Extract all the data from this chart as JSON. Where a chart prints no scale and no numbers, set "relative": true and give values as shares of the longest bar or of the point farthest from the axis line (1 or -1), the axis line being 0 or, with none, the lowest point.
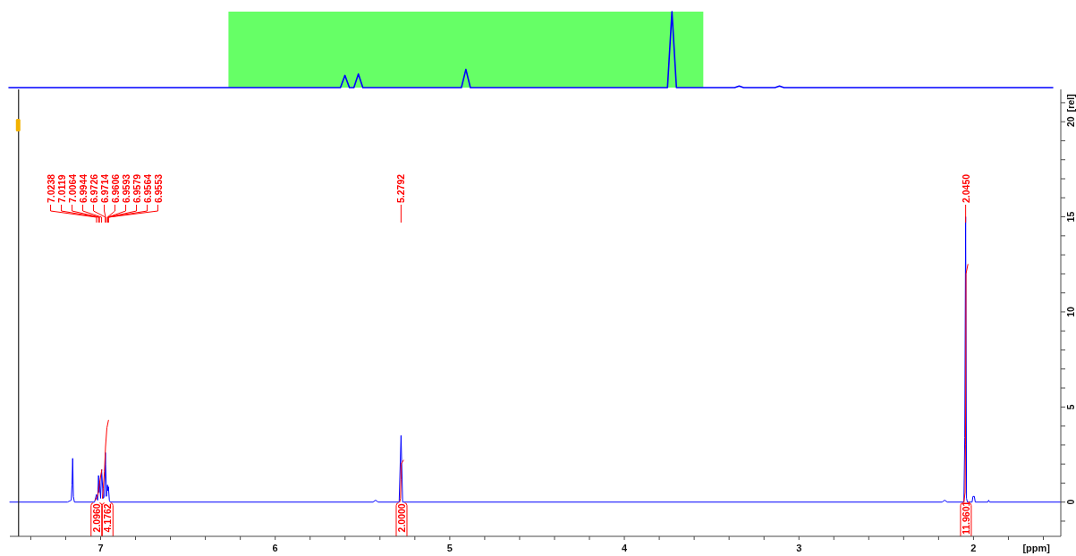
{
  "chart_data": [
    {
      "type": "line",
      "relative": true,
      "categories": [
        null,
        null,
        null,
        null,
        null,
        null,
        null,
        null,
        null,
        null,
        null,
        null,
        null,
        null,
        null,
        null,
        null,
        null,
        null,
        null,
        null,
        null,
        null,
        null,
        null,
        null,
        null,
        null,
        null,
        null,
        null,
        null,
        null,
        null,
        null,
        null,
        null,
        null,
        null,
        null,
        null,
        null,
        null,
        null,
        null,
        null,
        null,
        null,
        null,
        null,
        null,
        null,
        null,
        null,
        null,
        null,
        null,
        null,
        null,
        null,
        null,
        null,
        null,
        null,
        null,
        null,
        null,
        null,
        null,
        null,
        null,
        null,
        null,
        null,
        null,
        null,
        null,
        null,
        null,
        null,
        null,
        null,
        null,
        null,
        null,
        null,
        null,
        null,
        null,
        null,
        null,
        null,
        null,
        null,
        null,
        null,
        null,
        null,
        null,
        null,
        null,
        null,
        null,
        null,
        null,
        null,
        null,
        null,
        null,
        null,
        null,
        null,
        null,
        null,
        null,
        null,
        null,
        null,
        null,
        null,
        null,
        null,
        null,
        null,
        null,
        null,
        null,
        null,
        null,
        null,
        null,
        null,
        null,
        null,
        null,
        null,
        null,
        null,
        null,
        null,
        null,
        null,
        null,
        null,
        null,
        null,
        null,
        null,
        null,
        null,
        null,
        null,
        null,
        null,
        null,
        null,
        null,
        null,
        null,
        null,
        null,
        null,
        null,
        null,
        null,
        null,
        null,
        null,
        null,
        null,
        null,
        null,
        null,
        null,
        null,
        null,
        null,
        null,
        null,
        null,
        null,
        null,
        null,
        null,
        null,
        null,
        null,
        null,
        null,
        null,
        null,
        null,
        null,
        null,
        null,
        null,
        null,
        null,
        null,
        null,
        null,
        null,
        null,
        null,
        null,
        null,
        null,
        null,
        null,
        null,
        null,
        null,
        null,
        null,
        null,
        null,
        null,
        null,
        null,
        null,
        null,
        null,
        null,
        null,
        null,
        null,
        null,
        null,
        null,
        null,
        null,
        null,
        null,
        null
      ],
      "series": [
        {
          "type": "area",
          "color": "#66ff66",
          "values": [
            null,
            null,
            null,
            null,
            null,
            null,
            null,
            null,
            null,
            null,
            null,
            null,
            null,
            null,
            null,
            null,
            null,
            null,
            null,
            null,
            null,
            null,
            null,
            null,
            null,
            null,
            null,
            null,
            null,
            null,
            null,
            null,
            null,
            null,
            null,
            null,
            null,
            null,
            null,
            null,
            null,
            null,
            null,
            null,
            null,
            null,
            null,
            null,
            null,
            1,
            1,
            1,
            1,
            1,
            1,
            1,
            1,
            1,
            1,
            1,
            1,
            1,
            1,
            1,
            1,
            1,
            1,
            1,
            1,
            1,
            1,
            1,
            1,
            1,
            1,
            1,
            1,
            1,
            1,
            1,
            1,
            1,
            1,
            1,
            1,
            1,
            1,
            1,
            1,
            1,
            1,
            1,
            1,
            1,
            1,
            1,
            1,
            1,
            1,
            1,
            1,
            1,
            1,
            1,
            1,
            1,
            1,
            1,
            1,
            1,
            1,
            1,
            1,
            1,
            1,
            1,
            1,
            1,
            1,
            1,
            1,
            1,
            1,
            1,
            1,
            1,
            1,
            1,
            1,
            1,
            1,
            1,
            1,
            1,
            1,
            1,
            1,
            1,
            1,
            1,
            1,
            1,
            1,
            1,
            1,
            1,
            1,
            1,
            1,
            1,
            1,
            1,
            1,
            1,
            1,
            1,
            null,
            null,
            null,
            null,
            null,
            null,
            null,
            null,
            null,
            null,
            null,
            null,
            null,
            null,
            null,
            null,
            null,
            null,
            null,
            null,
            null,
            null,
            null,
            null,
            null,
            null,
            null,
            null,
            null,
            null,
            null,
            null,
            null,
            null,
            null,
            null,
            null,
            null,
            null,
            null,
            null,
            null,
            null,
            null,
            null,
            null,
            null,
            null,
            null,
            null,
            null,
            null,
            null,
            null,
            null,
            null,
            null,
            null,
            null,
            null,
            null,
            null,
            null,
            null,
            null,
            null,
            null,
            null,
            null,
            null,
            null,
            null,
            null,
            null,
            null,
            null,
            null,
            null
          ]
        },
        {
          "color": "#0000ff",
          "values": [
            0,
            0,
            0,
            0,
            0,
            0,
            0,
            0,
            0,
            0,
            0,
            0,
            0,
            0,
            0,
            0,
            0,
            0,
            0,
            0,
            0,
            0,
            0,
            0,
            0,
            0,
            0,
            0,
            0,
            0,
            0,
            0,
            0,
            0,
            0,
            0,
            0,
            0,
            0,
            0,
            0,
            0,
            0,
            0,
            0,
            0,
            0,
            0,
            0,
            0,
            0,
            0,
            0,
            0,
            0,
            0,
            0,
            0,
            0,
            0,
            0,
            0,
            0,
            0,
            0,
            0,
            0,
            0,
            0,
            0,
            0,
            0,
            0,
            0,
            0,
            0.16,
            0,
            0,
            0.18,
            0,
            0,
            0,
            0,
            0,
            0,
            0,
            0,
            0,
            0,
            0,
            0,
            0,
            0,
            0,
            0,
            0,
            0,
            0,
            0,
            0,
            0,
            0,
            0.24,
            0,
            0,
            0,
            0,
            0,
            0,
            0,
            0,
            0,
            0,
            0,
            0,
            0,
            0,
            0,
            0,
            0,
            0,
            0,
            0,
            0,
            0,
            0,
            0,
            0,
            0,
            0,
            0,
            0,
            0,
            0,
            0,
            0,
            0,
            0,
            0,
            0,
            0,
            0,
            0,
            0,
            0,
            0,
            0,
            0,
            1,
            0,
            0,
            0,
            0,
            0,
            0,
            0,
            0,
            0,
            0,
            0,
            0,
            0,
            0,
            0.02,
            0,
            0,
            0,
            0,
            0,
            0,
            0,
            0,
            0.02,
            0,
            0,
            0,
            0,
            0,
            0,
            0,
            0,
            0,
            0,
            0,
            0,
            0,
            0,
            0,
            0,
            0,
            0,
            0,
            0,
            0,
            0,
            0,
            0,
            0,
            0,
            0,
            0,
            0,
            0,
            0,
            0,
            0,
            0,
            0,
            0,
            0,
            0,
            0,
            0,
            0,
            0,
            0,
            0,
            0,
            0,
            0,
            0,
            0,
            0,
            0,
            0,
            0,
            0,
            0,
            0,
            0,
            0,
            0,
            0,
            0
          ]
        }
      ]
    },
    {
      "type": "line",
      "xlabel": "[ppm]",
      "ylabel": "[rel]",
      "xlim": [
        7.52,
        1.5
      ],
      "xticks": [
        {
          "value": 7.4,
          "label": null
        },
        {
          "value": 7.2,
          "label": null
        },
        7,
        {
          "value": 6.8,
          "label": null
        },
        {
          "value": 6.6,
          "label": null
        },
        {
          "value": 6.4,
          "label": null
        },
        {
          "value": 6.2,
          "label": null
        },
        6,
        {
          "value": 5.8,
          "label": null
        },
        {
          "value": 5.6,
          "label": null
        },
        {
          "value": 5.4,
          "label": null
        },
        {
          "value": 5.2,
          "label": null
        },
        5,
        {
          "value": 4.8,
          "label": null
        },
        {
          "value": 4.6,
          "label": null
        },
        {
          "value": 4.4,
          "label": null
        },
        {
          "value": 4.2,
          "label": null
        },
        4,
        {
          "value": 3.8,
          "label": null
        },
        {
          "value": 3.6,
          "label": null
        },
        {
          "value": 3.4,
          "label": null
        },
        {
          "value": 3.2,
          "label": null
        },
        3,
        {
          "value": 2.8,
          "label": null
        },
        {
          "value": 2.6,
          "label": null
        },
        {
          "value": 2.4,
          "label": null
        },
        {
          "value": 2.2,
          "label": null
        },
        2,
        {
          "value": 1.8,
          "label": null
        },
        {
          "value": 1.6,
          "label": null
        }
      ],
      "ylim": [
        -1.8,
        21.7
      ],
      "yticks": [
        {
          "value": -1,
          "label": null
        },
        0,
        {
          "value": 1,
          "label": null
        },
        {
          "value": 2,
          "label": null
        },
        {
          "value": 3,
          "label": null
        },
        {
          "value": 4,
          "label": null
        },
        5,
        {
          "value": 6,
          "label": null
        },
        {
          "value": 7,
          "label": null
        },
        {
          "value": 8,
          "label": null
        },
        {
          "value": 9,
          "label": null
        },
        10,
        {
          "value": 11,
          "label": null
        },
        {
          "value": 12,
          "label": null
        },
        {
          "value": 13,
          "label": null
        },
        {
          "value": 14,
          "label": null
        },
        15,
        {
          "value": 16,
          "label": null
        },
        {
          "value": 17,
          "label": null
        },
        {
          "value": 18,
          "label": null
        },
        {
          "value": 19,
          "label": null
        },
        20,
        {
          "value": 21,
          "label": null
        }
      ],
      "series": [
        {
          "color": "#0000ff",
          "x": [
            7.52,
            7.19,
            7.168,
            7.164,
            7.16,
            7.156,
            7.15,
            7.035,
            7.0238,
            7.017,
            7.0119,
            7.009,
            7.0064,
            7.0,
            6.9944,
            6.985,
            6.978,
            6.9726,
            6.9714,
            6.966,
            6.9606,
            6.9593,
            6.9579,
            6.9564,
            6.9553,
            6.95,
            6.945,
            5.44,
            5.425,
            5.41,
            5.29,
            5.2792,
            5.27,
            2.18,
            2.165,
            2.15,
            2.055,
            2.05,
            2.045,
            2.04,
            2.035,
            2.008,
            2.003,
            1.995,
            1.99,
            1.918,
            1.913,
            1.908,
            1.5
          ],
          "values": [
            0,
            0,
            0.1,
            0.9,
            2.3,
            0.3,
            0,
            0,
            0.4,
            0.1,
            1.4,
            0.5,
            1.0,
            0.2,
            1.7,
            0.2,
            0.3,
            2.6,
            2.0,
            0.3,
            0.9,
            0.6,
            0.8,
            0.6,
            0.8,
            0.1,
            0,
            0,
            0.1,
            0,
            0,
            3.5,
            0,
            0,
            0.1,
            0,
            0,
            3.4,
            15.0,
            0.2,
            0,
            0,
            0.3,
            0.3,
            0,
            0,
            0.1,
            0,
            0
          ]
        },
        {
          "name": "2.0960",
          "color": "#ff0000",
          "x": [
            7.03,
            7.015,
            7.003,
            6.993
          ],
          "values": [
            0.1,
            0.4,
            1.2,
            1.7
          ]
        },
        {
          "name": "4.1762",
          "color": "#ff0000",
          "x": [
            6.99,
            6.985,
            6.978,
            6.972,
            6.964,
            6.955
          ],
          "values": [
            0.2,
            0.7,
            1.6,
            2.9,
            3.9,
            4.3
          ]
        },
        {
          "name": "2.0000",
          "color": "#ff0000",
          "x": [
            5.287,
            5.282,
            5.2795,
            5.279,
            5.265
          ],
          "values": [
            0,
            0.2,
            1.2,
            2.0,
            2.2
          ]
        },
        {
          "name": "11.9601",
          "color": "#ff0000",
          "x": [
            2.055,
            2.048,
            2.046,
            2.0445,
            2.043,
            2.032
          ],
          "values": [
            0,
            0.5,
            3.0,
            6.0,
            12.0,
            12.5
          ]
        }
      ],
      "annotations": [
        {
          "text": "7.0238",
          "x": 7.0238
        },
        {
          "text": "7.0119",
          "x": 7.0119
        },
        {
          "text": "7.0064",
          "x": 7.0064
        },
        {
          "text": "6.9944",
          "x": 6.9944
        },
        {
          "text": "6.9726",
          "x": 6.9726
        },
        {
          "text": "6.9714",
          "x": 6.9714
        },
        {
          "text": "6.9606",
          "x": 6.9606
        },
        {
          "text": "6.9593",
          "x": 6.9593
        },
        {
          "text": "6.9579",
          "x": 6.9579
        },
        {
          "text": "6.9564",
          "x": 6.9564
        },
        {
          "text": "6.9553",
          "x": 6.9553
        },
        {
          "text": "5.2792",
          "x": 5.2792
        },
        {
          "text": "2.0450",
          "x": 2.045
        }
      ],
      "ref_lines": [
        {
          "axis": "x",
          "value": 7.47,
          "color": "#202020"
        }
      ]
    }
  ]
}
